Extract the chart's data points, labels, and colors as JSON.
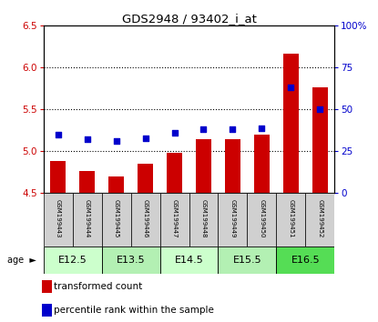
{
  "title": "GDS2948 / 93402_i_at",
  "samples": [
    "GSM199443",
    "GSM199444",
    "GSM199445",
    "GSM199446",
    "GSM199447",
    "GSM199448",
    "GSM199449",
    "GSM199450",
    "GSM199451",
    "GSM199452"
  ],
  "transformed_count": [
    4.88,
    4.76,
    4.7,
    4.85,
    4.98,
    5.15,
    5.15,
    5.2,
    6.17,
    5.76
  ],
  "percentile_rank": [
    35,
    32,
    31,
    33,
    36,
    38,
    38,
    39,
    63,
    50
  ],
  "age_groups": [
    {
      "label": "E12.5",
      "start": 0,
      "end": 2,
      "color": "#ccffcc"
    },
    {
      "label": "E13.5",
      "start": 2,
      "end": 4,
      "color": "#b3f0b3"
    },
    {
      "label": "E14.5",
      "start": 4,
      "end": 6,
      "color": "#ccffcc"
    },
    {
      "label": "E15.5",
      "start": 6,
      "end": 8,
      "color": "#b3f0b3"
    },
    {
      "label": "E16.5",
      "start": 8,
      "end": 10,
      "color": "#55dd55"
    }
  ],
  "ylim_left": [
    4.5,
    6.5
  ],
  "ylim_right": [
    0,
    100
  ],
  "yticks_left": [
    4.5,
    5.0,
    5.5,
    6.0,
    6.5
  ],
  "yticks_right": [
    0,
    25,
    50,
    75,
    100
  ],
  "ytick_right_labels": [
    "0",
    "25",
    "50",
    "75",
    "100%"
  ],
  "bar_color": "#cc0000",
  "dot_color": "#0000cc",
  "bar_bottom": 4.5,
  "bar_width": 0.55,
  "gridline_vals": [
    5.0,
    5.5,
    6.0
  ],
  "legend_items": [
    "transformed count",
    "percentile rank within the sample"
  ],
  "sample_box_color": "#d0d0d0",
  "age_label": "age"
}
